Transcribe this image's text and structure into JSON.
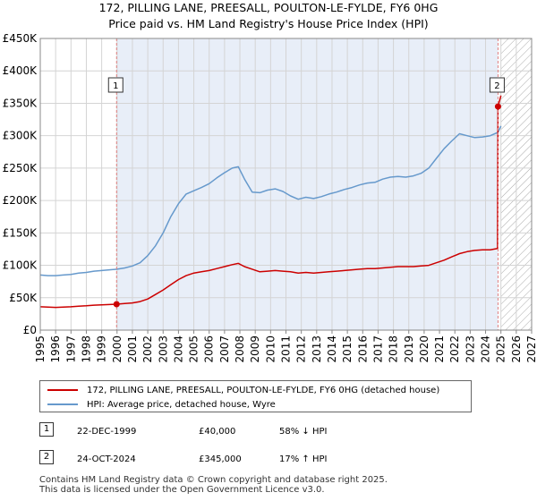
{
  "title_line1": "172, PILLING LANE, PREESALL, POULTON-LE-FYLDE, FY6 0HG",
  "title_line2": "Price paid vs. HM Land Registry's House Price Index (HPI)",
  "colors": {
    "property": "#cc0000",
    "hpi": "#6699cc",
    "shade": "#e8eef8",
    "vline": "#e08080",
    "grid": "#d4d4d4",
    "hatch": "#aaaaaa"
  },
  "chart_data": {
    "type": "line",
    "x_range": [
      1995,
      2027
    ],
    "ylim": [
      0,
      450000
    ],
    "y_ticks": [
      {
        "value": 0,
        "label": "£0"
      },
      {
        "value": 50000,
        "label": "£50K"
      },
      {
        "value": 100000,
        "label": "£100K"
      },
      {
        "value": 150000,
        "label": "£150K"
      },
      {
        "value": 200000,
        "label": "£200K"
      },
      {
        "value": 250000,
        "label": "£250K"
      },
      {
        "value": 300000,
        "label": "£300K"
      },
      {
        "value": 350000,
        "label": "£350K"
      },
      {
        "value": 400000,
        "label": "£400K"
      },
      {
        "value": 450000,
        "label": "£450K"
      }
    ],
    "x_ticks": [
      "1995",
      "1996",
      "1997",
      "1998",
      "1999",
      "2000",
      "2001",
      "2002",
      "2003",
      "2004",
      "2005",
      "2006",
      "2007",
      "2008",
      "2009",
      "2010",
      "2011",
      "2012",
      "2013",
      "2014",
      "2015",
      "2016",
      "2017",
      "2018",
      "2019",
      "2020",
      "2021",
      "2022",
      "2023",
      "2024",
      "2025",
      "2026",
      "2027"
    ],
    "shaded_range": [
      1999.97,
      2024.81
    ],
    "future_hatch_from": 2025.0,
    "series": [
      {
        "name": "172, PILLING LANE, PREESALL, POULTON-LE-FYLDE, FY6 0HG (detached house)",
        "color": "#cc0000",
        "x": [
          1995.0,
          1995.5,
          1996.0,
          1996.5,
          1997.0,
          1997.5,
          1998.0,
          1998.5,
          1999.0,
          1999.5,
          1999.97,
          2000.5,
          2001.0,
          2001.5,
          2002.0,
          2002.5,
          2003.0,
          2003.5,
          2004.0,
          2004.5,
          2005.0,
          2005.5,
          2006.0,
          2006.5,
          2007.0,
          2007.5,
          2007.9,
          2008.3,
          2008.8,
          2009.3,
          2009.8,
          2010.3,
          2010.8,
          2011.3,
          2011.8,
          2012.3,
          2012.8,
          2013.3,
          2013.8,
          2014.3,
          2014.8,
          2015.3,
          2015.8,
          2016.3,
          2016.8,
          2017.3,
          2017.8,
          2018.3,
          2018.8,
          2019.3,
          2019.8,
          2020.3,
          2020.8,
          2021.3,
          2021.8,
          2022.3,
          2022.8,
          2023.3,
          2023.8,
          2024.3,
          2024.78,
          2024.81,
          2025.0
        ],
        "values": [
          36000,
          35500,
          35000,
          35500,
          36000,
          37000,
          37500,
          38500,
          39000,
          39500,
          40000,
          41000,
          42000,
          44000,
          48000,
          55000,
          62000,
          70000,
          78000,
          84000,
          88000,
          90000,
          92000,
          95000,
          98000,
          101000,
          103000,
          98000,
          94000,
          90000,
          91000,
          92000,
          91000,
          90000,
          88000,
          89000,
          88000,
          89000,
          90000,
          91000,
          92000,
          93000,
          94000,
          95000,
          95000,
          96000,
          97000,
          98000,
          98000,
          98000,
          99000,
          100000,
          104000,
          108000,
          113000,
          118000,
          121000,
          123000,
          124000,
          124000,
          126000,
          345000,
          362000
        ]
      },
      {
        "name": "HPI: Average price, detached house, Wyre",
        "color": "#6699cc",
        "x": [
          1995.0,
          1995.5,
          1996.0,
          1996.5,
          1997.0,
          1997.5,
          1998.0,
          1998.5,
          1999.0,
          1999.5,
          2000.0,
          2000.5,
          2001.0,
          2001.5,
          2002.0,
          2002.5,
          2003.0,
          2003.5,
          2004.0,
          2004.5,
          2005.0,
          2005.5,
          2006.0,
          2006.5,
          2007.0,
          2007.5,
          2007.9,
          2008.3,
          2008.8,
          2009.3,
          2009.8,
          2010.3,
          2010.8,
          2011.3,
          2011.8,
          2012.3,
          2012.8,
          2013.3,
          2013.8,
          2014.3,
          2014.8,
          2015.3,
          2015.8,
          2016.3,
          2016.8,
          2017.3,
          2017.8,
          2018.3,
          2018.8,
          2019.3,
          2019.8,
          2020.3,
          2020.8,
          2021.3,
          2021.8,
          2022.3,
          2022.8,
          2023.3,
          2023.8,
          2024.3,
          2024.8,
          2025.0
        ],
        "values": [
          85000,
          84000,
          84000,
          85000,
          86000,
          88000,
          89000,
          91000,
          92000,
          93000,
          94000,
          96000,
          99000,
          104000,
          115000,
          130000,
          150000,
          175000,
          195000,
          210000,
          215000,
          220000,
          226000,
          235000,
          243000,
          250000,
          252000,
          233000,
          213000,
          212000,
          216000,
          218000,
          214000,
          207000,
          202000,
          205000,
          203000,
          206000,
          210000,
          213000,
          217000,
          220000,
          224000,
          227000,
          228000,
          233000,
          236000,
          237000,
          236000,
          238000,
          242000,
          250000,
          265000,
          280000,
          292000,
          303000,
          300000,
          297000,
          298000,
          300000,
          305000,
          315000
        ]
      }
    ],
    "annotations": [
      {
        "label": "1",
        "x": 1999.97,
        "value": 40000
      },
      {
        "label": "2",
        "x": 2024.81,
        "value": 345000
      }
    ]
  },
  "legend": {
    "property_label": "172, PILLING LANE, PREESALL, POULTON-LE-FYLDE, FY6 0HG (detached house)",
    "hpi_label": "HPI: Average price, detached house, Wyre"
  },
  "transactions": [
    {
      "num": "1",
      "date": "22-DEC-1999",
      "price": "£40,000",
      "hpi_change": "58% ↓ HPI"
    },
    {
      "num": "2",
      "date": "24-OCT-2024",
      "price": "£345,000",
      "hpi_change": "17% ↑ HPI"
    }
  ],
  "footer_line1": "Contains HM Land Registry data © Crown copyright and database right 2025.",
  "footer_line2": "This data is licensed under the Open Government Licence v3.0."
}
